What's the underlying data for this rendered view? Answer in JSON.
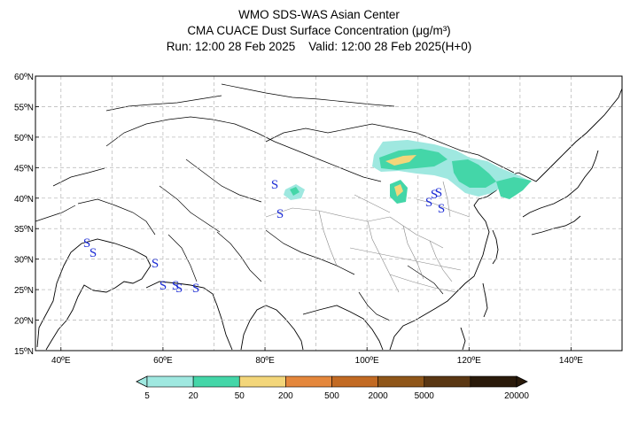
{
  "header": {
    "line1": "WMO SDS-WAS Asian Center",
    "line2": "CMA CUACE Dust Surface Concentration (μg/m³)",
    "line3": "Run: 12:00 28 Feb 2025    Valid: 12:00 28 Feb 2025(H+0)"
  },
  "map": {
    "lat_labels": [
      "60ºN",
      "55ºN",
      "50ºN",
      "45ºN",
      "40ºN",
      "35ºN",
      "30ºN",
      "25ºN",
      "20ºN",
      "15ºN"
    ],
    "lon_labels": [
      "40ºE",
      "60ºE",
      "80ºE",
      "100ºE",
      "120ºE",
      "140ºE"
    ],
    "lat_range": [
      15,
      60
    ],
    "lon_range": [
      35,
      150
    ],
    "storm_symbol": "S",
    "storm_symbol_color": "#1f2fd6",
    "grid": true
  },
  "legend": {
    "levels": [
      "5",
      "20",
      "50",
      "200",
      "500",
      "2000",
      "5000",
      "20000"
    ],
    "colors": [
      "#9fe8e0",
      "#44d6a8",
      "#f3d67a",
      "#e4873c",
      "#c26a23",
      "#8f5619",
      "#5a3713",
      "#2a1a0a"
    ]
  }
}
